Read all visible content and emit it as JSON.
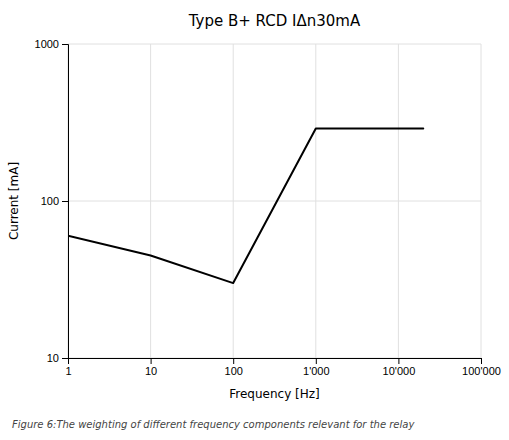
{
  "chart_data": {
    "type": "line",
    "title": "Type B+ RCD IΔn30mA",
    "x_label": "Frequency [Hz]",
    "y_label": "Current [mA]",
    "caption": "Figure 6:The weighting of different frequency components relevant for the relay",
    "x": [
      1,
      10,
      100,
      1000,
      20000
    ],
    "values": [
      60,
      45,
      30,
      290,
      290
    ],
    "color": "#000000",
    "log": true,
    "grid": true,
    "xlim": [
      1,
      100000
    ],
    "ylim": [
      10,
      1000
    ],
    "xticks": [
      1,
      10,
      100,
      {
        "value": 1000,
        "label": "1'000"
      },
      {
        "value": 10000,
        "label": "10'000"
      },
      {
        "value": 100000,
        "label": "100'000"
      }
    ],
    "yticks": [
      10,
      100,
      1000
    ]
  }
}
